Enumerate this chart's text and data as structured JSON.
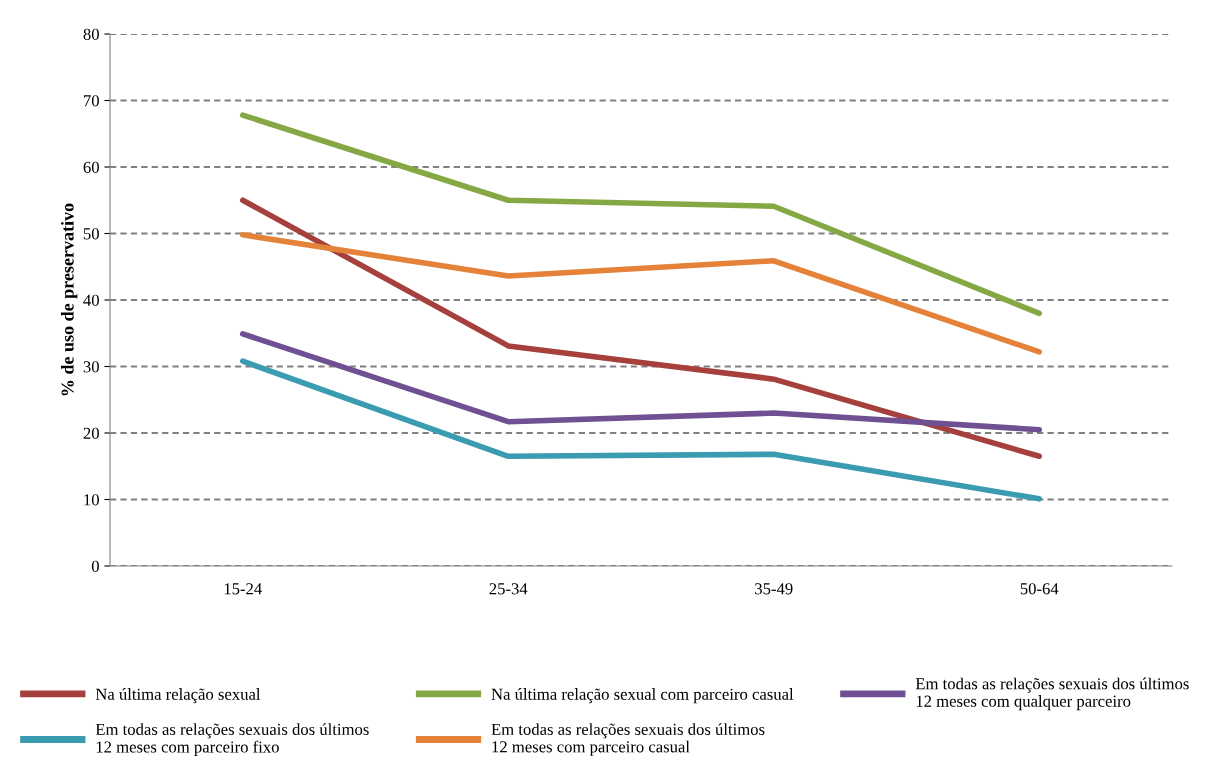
{
  "chart_data": {
    "type": "line",
    "ylabel": "% de uso de preservativo",
    "categories": [
      "15-24",
      "25-34",
      "35-49",
      "50-64"
    ],
    "series": [
      {
        "name": "Na última relação sexual",
        "color": "#a5403d",
        "values": [
          55.0,
          33.1,
          28.1,
          16.5
        ]
      },
      {
        "name": "Na última relação sexual com parceiro casual",
        "color": "#85a844",
        "values": [
          67.8,
          55.0,
          54.1,
          38.0
        ]
      },
      {
        "name": "Em todas as relações sexuais dos últimos\n12 meses com qualquer parceiro",
        "color": "#6f5093",
        "values": [
          34.9,
          21.7,
          23.0,
          20.5
        ]
      },
      {
        "name": "Em todas as relações sexuais dos últimos\n12 meses com parceiro fixo",
        "color": "#3a9bb1",
        "values": [
          30.8,
          16.5,
          16.8,
          10.1
        ]
      },
      {
        "name": "Em todas as relações sexuais dos últimos\n12 meses com parceiro casual",
        "color": "#e5823a",
        "values": [
          49.8,
          43.6,
          45.9,
          32.2
        ]
      }
    ],
    "ylim": [
      0,
      80
    ],
    "yticks": [
      0,
      10,
      20,
      30,
      40,
      50,
      60,
      70,
      80
    ],
    "grid": "y",
    "legend": "bottom",
    "marker": "none",
    "line_style": "solid"
  }
}
